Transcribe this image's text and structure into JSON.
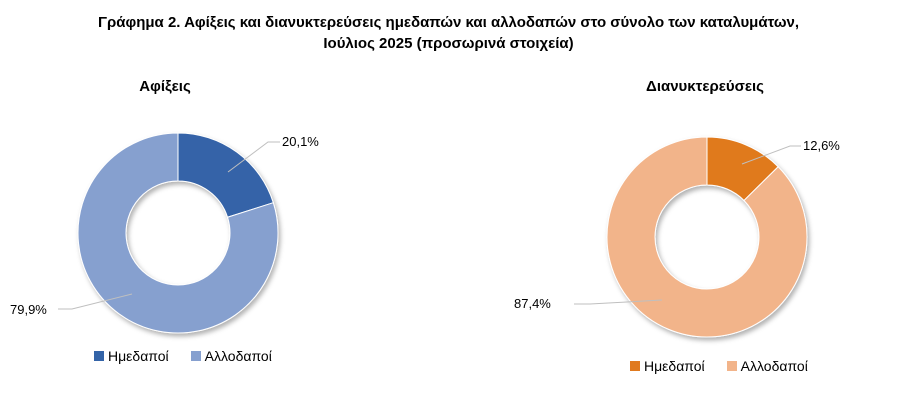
{
  "title": {
    "line1": "Γράφημα 2. Αφίξεις και διανυκτερεύσεις ημεδαπών και αλλοδαπών στο σύνολο των καταλυμάτων,",
    "line2": "Ιούλιος 2025  (προσωρινά στοιχεία)"
  },
  "colors": {
    "arrivals_domestic": "#3464A8",
    "arrivals_foreign": "#86A0CF",
    "nights_domestic": "#E07A1F",
    "nights_foreign": "#F2B48A"
  },
  "chart_data": [
    {
      "type": "pie",
      "title": "Αφίξεις",
      "categories": [
        "Ημεδαποί",
        "Αλλοδαποί"
      ],
      "values": [
        20.1,
        79.9
      ],
      "data_labels": [
        "20,1%",
        "79,9%"
      ],
      "legend_position": "bottom"
    },
    {
      "type": "pie",
      "title": "Διανυκτερεύσεις",
      "categories": [
        "Ημεδαποί",
        "Αλλοδαποί"
      ],
      "values": [
        12.6,
        87.4
      ],
      "data_labels": [
        "12,6%",
        "87,4%"
      ],
      "legend_position": "bottom"
    }
  ]
}
